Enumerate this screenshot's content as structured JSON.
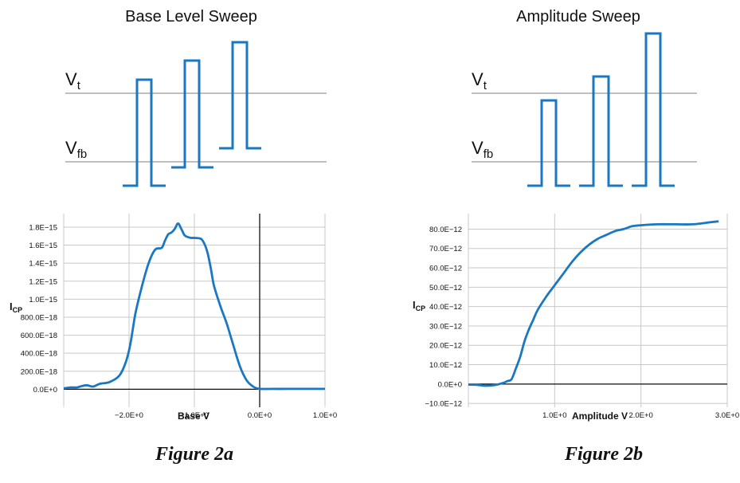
{
  "panels": [
    {
      "heading": "Base Level Sweep",
      "caption": "Figure 2a",
      "levels": [
        {
          "main": "V",
          "sub": "t"
        },
        {
          "main": "V",
          "sub": "fb"
        }
      ],
      "ylabel_main": "I",
      "ylabel_sub": "CP"
    },
    {
      "heading": "Amplitude Sweep",
      "caption": "Figure 2b",
      "levels": [
        {
          "main": "V",
          "sub": "t"
        },
        {
          "main": "V",
          "sub": "fb"
        }
      ],
      "ylabel_main": "I",
      "ylabel_sub": "CP"
    }
  ],
  "chart_data": [
    {
      "type": "line",
      "title": "",
      "xlabel": "Base V",
      "ylabel": "ICP",
      "xlim": [
        -3.0,
        1.0
      ],
      "ylim": [
        -2e-16,
        1.95e-15
      ],
      "grid": true,
      "x_ticks": [
        -2.0,
        -1.0,
        0.0,
        1.0
      ],
      "x_tick_labels": [
        "−2.0E+0",
        "−1.0E+0",
        "0.0E+0",
        "1.0E+0"
      ],
      "y_ticks": [
        0,
        2e-16,
        4e-16,
        6e-16,
        8e-16,
        1e-15,
        1.2e-15,
        1.4e-15,
        1.6e-15,
        1.8e-15
      ],
      "y_tick_labels": [
        "0.0E+0",
        "200.0E−18",
        "400.0E−18",
        "600.0E−18",
        "800.0E−18",
        "1.0E−15",
        "1.2E−15",
        "1.4E−15",
        "1.6E−15",
        "1.8E−15"
      ],
      "series": [
        {
          "x": [
            -3.0,
            -2.9,
            -2.8,
            -2.75,
            -2.65,
            -2.55,
            -2.45,
            -2.3,
            -2.15,
            -2.05,
            -1.98,
            -1.9,
            -1.8,
            -1.7,
            -1.6,
            -1.5,
            -1.45,
            -1.4,
            -1.35,
            -1.3,
            -1.25,
            -1.2,
            -1.15,
            -1.1,
            -1.05,
            -1.0,
            -0.9,
            -0.85,
            -0.8,
            -0.75,
            -0.7,
            -0.6,
            -0.5,
            -0.4,
            -0.3,
            -0.2,
            -0.1,
            0.0,
            0.2,
            0.4,
            0.6,
            0.8,
            1.0
          ],
          "y": [
            1e-17,
            2e-17,
            2e-17,
            3e-17,
            4.5e-17,
            3e-17,
            6e-17,
            8e-17,
            1.5e-16,
            3e-16,
            5e-16,
            8.5e-16,
            1.15e-15,
            1.4e-15,
            1.55e-15,
            1.57e-15,
            1.65e-15,
            1.72e-15,
            1.74e-15,
            1.78e-15,
            1.84e-15,
            1.78e-15,
            1.71e-15,
            1.69e-15,
            1.68e-15,
            1.68e-15,
            1.67e-15,
            1.62e-15,
            1.52e-15,
            1.35e-15,
            1.15e-15,
            9.2e-16,
            7.2e-16,
            4.8e-16,
            2.5e-16,
            1e-16,
            3e-17,
            5e-18,
            4e-18,
            4e-18,
            4e-18,
            4e-18,
            4e-18
          ]
        }
      ]
    },
    {
      "type": "line",
      "title": "",
      "xlabel": "Amplitude V",
      "ylabel": "ICP",
      "xlim": [
        0.0,
        3.0
      ],
      "ylim": [
        -1.2e-11,
        8.8e-11
      ],
      "grid": true,
      "x_ticks": [
        1.0,
        2.0,
        3.0
      ],
      "x_tick_labels": [
        "1.0E+0",
        "2.0E+0",
        "3.0E+0"
      ],
      "y_ticks": [
        -1e-11,
        0,
        1e-11,
        2e-11,
        3e-11,
        4e-11,
        5e-11,
        6e-11,
        7e-11,
        8e-11
      ],
      "y_tick_labels": [
        "−10.0E−12",
        "0.0E+0",
        "10.0E−12",
        "20.0E−12",
        "30.0E−12",
        "40.0E−12",
        "50.0E−12",
        "60.0E−12",
        "70.0E−12",
        "80.0E−12"
      ],
      "series": [
        {
          "x": [
            0.0,
            0.1,
            0.2,
            0.3,
            0.4,
            0.45,
            0.5,
            0.55,
            0.6,
            0.65,
            0.7,
            0.75,
            0.8,
            0.9,
            1.0,
            1.1,
            1.2,
            1.3,
            1.4,
            1.5,
            1.6,
            1.7,
            1.8,
            1.9,
            2.0,
            2.2,
            2.4,
            2.6,
            2.8,
            2.9
          ],
          "y": [
            -3e-13,
            -4e-13,
            -9e-13,
            -6e-13,
            5e-13,
            1.5e-12,
            2.5e-12,
            8e-12,
            1.4e-11,
            2.2e-11,
            2.8e-11,
            3.3e-11,
            3.8e-11,
            4.5e-11,
            5.1e-11,
            5.7e-11,
            6.3e-11,
            6.8e-11,
            7.2e-11,
            7.5e-11,
            7.7e-11,
            7.9e-11,
            8e-11,
            8.15e-11,
            8.2e-11,
            8.25e-11,
            8.25e-11,
            8.25e-11,
            8.35e-11,
            8.4e-11
          ]
        }
      ]
    }
  ]
}
